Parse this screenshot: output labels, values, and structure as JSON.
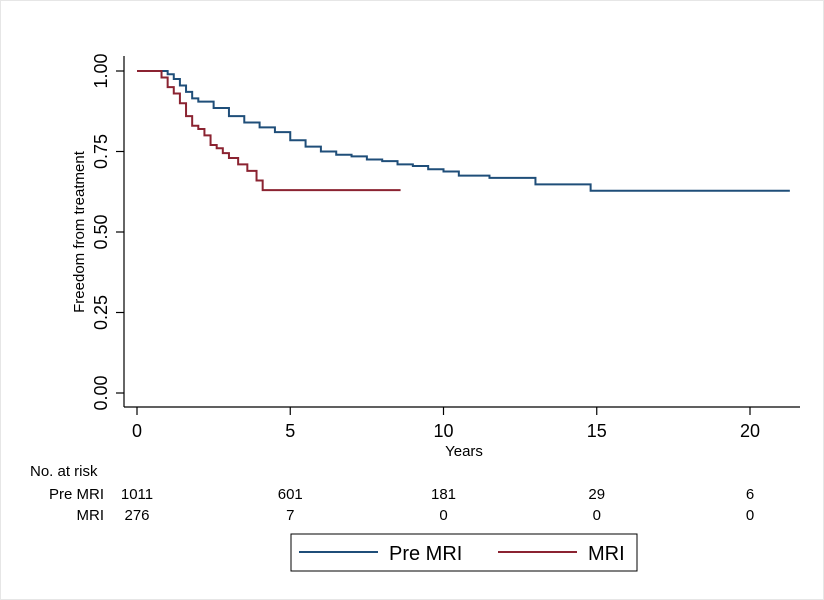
{
  "chart_data": {
    "type": "line",
    "subtype": "kaplan-meier step curve",
    "xlabel": "Years",
    "ylabel": "Freedom from treatment",
    "xlim": [
      0,
      21.5
    ],
    "ylim": [
      0,
      1
    ],
    "x_ticks": [
      0,
      5,
      10,
      15,
      20
    ],
    "x_tick_labels": [
      "0",
      "5",
      "10",
      "15",
      "20"
    ],
    "y_ticks": [
      0,
      0.25,
      0.5,
      0.75,
      1
    ],
    "y_tick_labels": [
      "0.00",
      "0.25",
      "0.50",
      "0.75",
      "1.00"
    ],
    "grid": false,
    "series": [
      {
        "name": "Pre MRI",
        "color": "#1f4e79",
        "points": [
          [
            0,
            1.0
          ],
          [
            0.8,
            1.0
          ],
          [
            1.0,
            0.99
          ],
          [
            1.2,
            0.975
          ],
          [
            1.4,
            0.955
          ],
          [
            1.6,
            0.935
          ],
          [
            1.8,
            0.915
          ],
          [
            2.0,
            0.905
          ],
          [
            2.5,
            0.885
          ],
          [
            3.0,
            0.86
          ],
          [
            3.5,
            0.84
          ],
          [
            4.0,
            0.825
          ],
          [
            4.5,
            0.81
          ],
          [
            5.0,
            0.785
          ],
          [
            5.5,
            0.765
          ],
          [
            6.0,
            0.75
          ],
          [
            6.5,
            0.74
          ],
          [
            7.0,
            0.735
          ],
          [
            7.5,
            0.725
          ],
          [
            8.0,
            0.72
          ],
          [
            8.5,
            0.71
          ],
          [
            9.0,
            0.705
          ],
          [
            9.5,
            0.695
          ],
          [
            10.0,
            0.688
          ],
          [
            10.5,
            0.675
          ],
          [
            11.5,
            0.668
          ],
          [
            13.0,
            0.648
          ],
          [
            14.8,
            0.628
          ],
          [
            21.3,
            0.628
          ]
        ]
      },
      {
        "name": "MRI",
        "color": "#8b2331",
        "points": [
          [
            0,
            1.0
          ],
          [
            0.6,
            1.0
          ],
          [
            0.8,
            0.98
          ],
          [
            1.0,
            0.95
          ],
          [
            1.2,
            0.93
          ],
          [
            1.4,
            0.9
          ],
          [
            1.6,
            0.86
          ],
          [
            1.8,
            0.83
          ],
          [
            2.0,
            0.82
          ],
          [
            2.2,
            0.8
          ],
          [
            2.4,
            0.77
          ],
          [
            2.6,
            0.76
          ],
          [
            2.8,
            0.745
          ],
          [
            3.0,
            0.73
          ],
          [
            3.3,
            0.71
          ],
          [
            3.6,
            0.69
          ],
          [
            3.9,
            0.66
          ],
          [
            4.1,
            0.63
          ],
          [
            8.6,
            0.63
          ]
        ]
      }
    ],
    "risk_table": {
      "title": "No. at risk",
      "times": [
        0,
        5,
        10,
        15,
        20
      ],
      "rows": [
        {
          "label": "Pre MRI",
          "counts": [
            "1011",
            "601",
            "181",
            "29",
            "6"
          ]
        },
        {
          "label": "MRI",
          "counts": [
            "276",
            "7",
            "0",
            "0",
            "0"
          ]
        }
      ]
    },
    "legend": {
      "position": "bottom",
      "entries": [
        {
          "label": "Pre MRI",
          "color": "#1f4e79"
        },
        {
          "label": "MRI",
          "color": "#8b2331"
        }
      ]
    }
  }
}
